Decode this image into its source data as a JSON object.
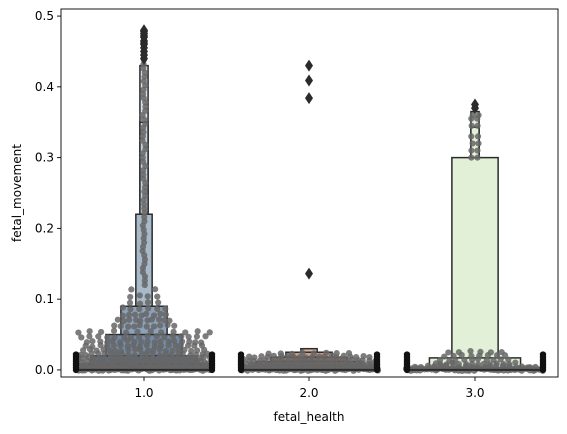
{
  "chart_data": {
    "type": "boxen_swarm",
    "xlabel": "fetal_health",
    "ylabel": "fetal_movement",
    "categories": [
      "1.0",
      "2.0",
      "3.0"
    ],
    "ylim": [
      -0.01,
      0.51
    ],
    "yticks": [
      0.0,
      0.1,
      0.2,
      0.3,
      0.4,
      0.5
    ],
    "ytick_labels": [
      "0.0",
      "0.1",
      "0.2",
      "0.3",
      "0.4",
      "0.5"
    ],
    "grid": false,
    "colors": {
      "1.0": "#3a5f86",
      "2.0": "#a0522d",
      "3.0": "#e2f0d8",
      "swarm": "#666666",
      "edge": "#2b2b2b",
      "outlier": "#2b2b2b"
    },
    "series": [
      {
        "category": "1.0",
        "median": 0.0,
        "letter_values": [
          {
            "low": 0.0,
            "high": 0.008
          },
          {
            "low": 0.0,
            "high": 0.02
          },
          {
            "low": 0.0,
            "high": 0.05
          },
          {
            "low": 0.0,
            "high": 0.09
          },
          {
            "low": 0.0,
            "high": 0.22
          },
          {
            "low": 0.0,
            "high": 0.35
          },
          {
            "low": 0.0,
            "high": 0.43
          }
        ],
        "outliers": [
          0.44,
          0.445,
          0.45,
          0.455,
          0.46,
          0.462,
          0.465,
          0.47,
          0.472,
          0.475,
          0.478,
          0.48
        ]
      },
      {
        "category": "2.0",
        "median": 0.0,
        "letter_values": [
          {
            "low": 0.0,
            "high": 0.005
          },
          {
            "low": 0.0,
            "high": 0.012
          },
          {
            "low": 0.0,
            "high": 0.018
          },
          {
            "low": 0.0,
            "high": 0.025
          },
          {
            "low": 0.0,
            "high": 0.03
          }
        ],
        "outliers": [
          0.136,
          0.384,
          0.409,
          0.43
        ]
      },
      {
        "category": "3.0",
        "median": 0.0,
        "letter_values": [
          {
            "low": 0.0,
            "high": 0.003
          },
          {
            "low": 0.0,
            "high": 0.017
          },
          {
            "low": 0.0,
            "high": 0.3
          },
          {
            "low": 0.0,
            "high": 0.343
          },
          {
            "low": 0.0,
            "high": 0.365
          }
        ],
        "outliers": [
          0.37,
          0.375
        ]
      }
    ]
  }
}
